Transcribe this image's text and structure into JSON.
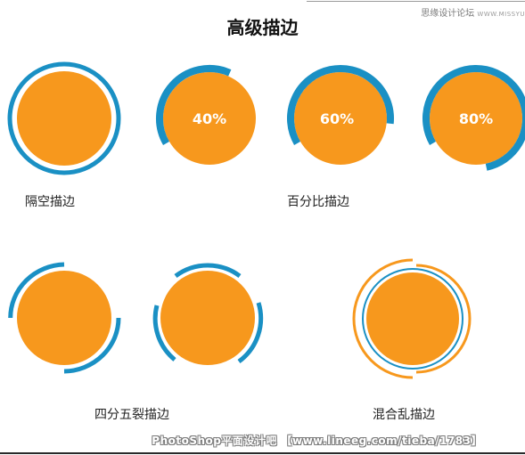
{
  "header": {
    "title": "高级描边",
    "watermark_cn": "思缘设计论坛",
    "watermark_en": "WWW.MISSYU"
  },
  "colors": {
    "orange": "#f7981d",
    "blue": "#1a90c4",
    "white": "#ffffff"
  },
  "examples": {
    "gap_caption": "隔空描边",
    "percent_caption": "百分比描边",
    "split_caption": "四分五裂描边",
    "mixed_caption": "混合乱描边",
    "percent_labels": [
      "40%",
      "60%",
      "80%"
    ],
    "percent_values": [
      0.4,
      0.6,
      0.8
    ]
  },
  "footer": {
    "text": "PhotoShop平面设计吧 【www.lineeg.com/tieba/1783】"
  }
}
